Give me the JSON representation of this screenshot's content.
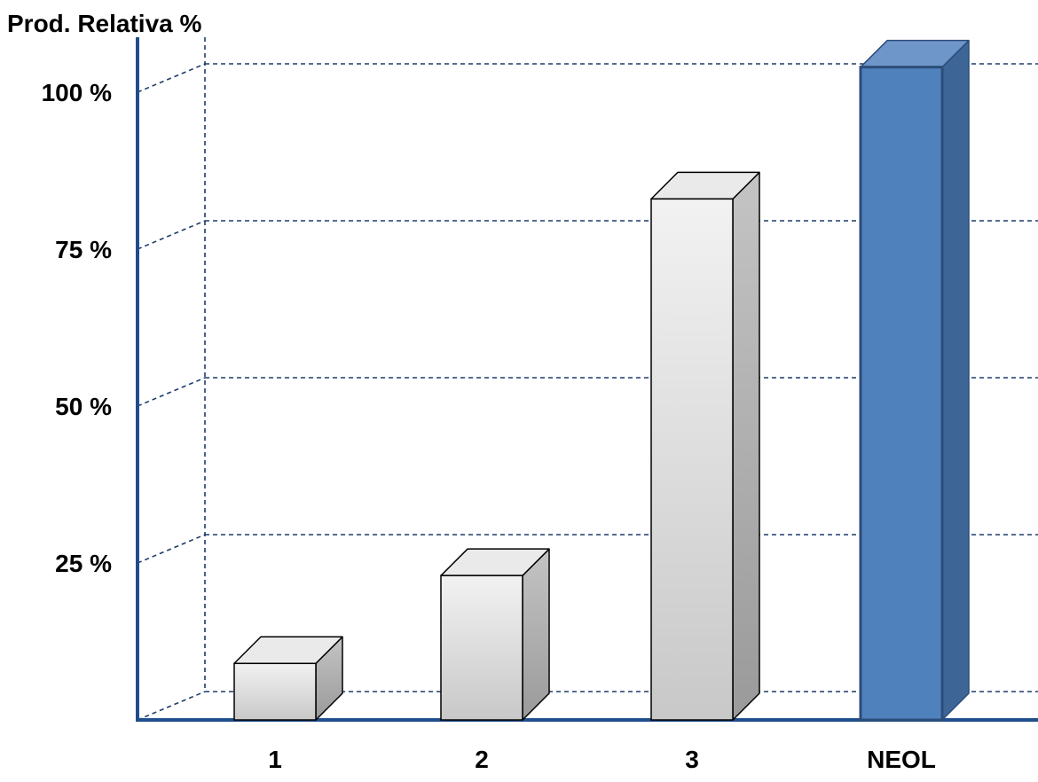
{
  "chart_data": {
    "type": "bar",
    "title": "",
    "ylabel": "Prod. Relativa %",
    "xlabel": "",
    "categories": [
      "1",
      "2",
      "3",
      "NEOL"
    ],
    "values": [
      9,
      23,
      83,
      104
    ],
    "ylim": [
      0,
      100
    ],
    "yticks": [
      "25 %",
      "50 %",
      "75 %",
      "100 %"
    ],
    "grid": true,
    "style": "3d-column",
    "colors": {
      "gray_front_top": "#f2f2f2",
      "gray_front_bottom": "#c8c8c8",
      "gray_side": "#a6a6a6",
      "gray_top": "#eaeaea",
      "highlight_front": "#4f81bd",
      "highlight_side": "#3d6595",
      "highlight_top": "#6f96c8",
      "axis": "#1f4e8c",
      "grid": "#1f3c6a"
    },
    "highlight_category": "NEOL"
  }
}
